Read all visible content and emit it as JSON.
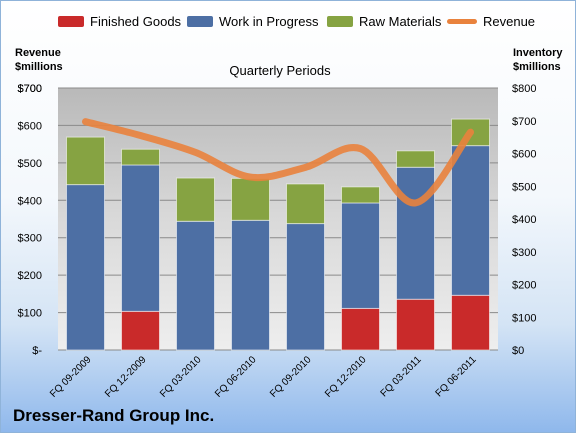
{
  "legend": {
    "finished": "Finished Goods",
    "wip": "Work in Progress",
    "raw": "Raw Materials",
    "revenue": "Revenue"
  },
  "left_axis_title": [
    "Revenue",
    "$millions"
  ],
  "right_axis_title": [
    "Inventory",
    "$millions"
  ],
  "company": "Dresser-Rand Group Inc.",
  "colors": {
    "finished": "#c92a2a",
    "wip": "#4d6fa4",
    "raw": "#86a342",
    "revenue": "#e9823d",
    "plot_bg": "#c8c8c8"
  },
  "chart_data": {
    "type": "bar",
    "title": "Quarterly Periods",
    "categories": [
      "FQ 09-2009",
      "FQ 12-2009",
      "FQ 03-2010",
      "FQ 06-2010",
      "FQ 09-2010",
      "FQ 12-2010",
      "FQ 03-2011",
      "FQ 06-2011"
    ],
    "series": [
      {
        "name": "Finished Goods",
        "axis": "right",
        "values": [
          0,
          118,
          0,
          0,
          0,
          127,
          155,
          167
        ]
      },
      {
        "name": "Work in Progress",
        "axis": "right",
        "values": [
          505,
          447,
          393,
          396,
          386,
          322,
          403,
          457
        ]
      },
      {
        "name": "Raw Materials",
        "axis": "right",
        "values": [
          145,
          48,
          132,
          128,
          121,
          49,
          50,
          81
        ]
      },
      {
        "name": "Revenue",
        "type": "line",
        "axis": "left",
        "values": [
          610,
          573,
          528,
          462,
          488,
          538,
          393,
          582
        ]
      }
    ],
    "left_ticks": [
      "$-",
      "$100",
      "$200",
      "$300",
      "$400",
      "$500",
      "$600",
      "$700"
    ],
    "right_ticks": [
      "$0",
      "$100",
      "$200",
      "$300",
      "$400",
      "$500",
      "$600",
      "$700",
      "$800"
    ],
    "ylim_left": [
      0,
      700
    ],
    "ylim_right": [
      0,
      800
    ],
    "grid": true,
    "legend_position": "top"
  }
}
